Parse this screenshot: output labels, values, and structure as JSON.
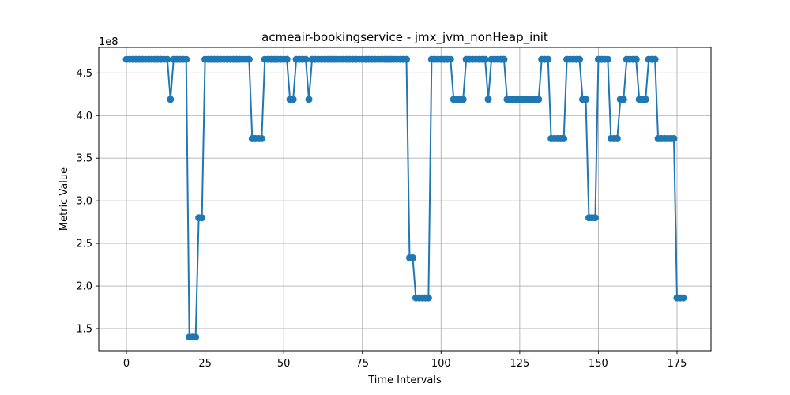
{
  "chart_data": {
    "type": "line",
    "title": "acmeair-bookingservice - jmx_jvm_nonHeap_init",
    "xlabel": "Time Intervals",
    "ylabel": "Metric Value",
    "offset_label": "1e8",
    "xlim": [
      -8.8,
      185.8
    ],
    "ylim": [
      124000000,
      480000000
    ],
    "x_ticks": [
      0,
      25,
      50,
      75,
      100,
      125,
      150,
      175
    ],
    "y_ticks": [
      150000000,
      200000000,
      250000000,
      300000000,
      350000000,
      400000000,
      450000000
    ],
    "y_tick_labels": [
      "1.5",
      "2.0",
      "2.5",
      "3.0",
      "3.5",
      "4.0",
      "4.5"
    ],
    "grid": true,
    "marker": "circle",
    "color": "#1f77b4",
    "series": [
      {
        "values": [
          466000000,
          466000000,
          466000000,
          466000000,
          466000000,
          466000000,
          466000000,
          466000000,
          466000000,
          466000000,
          466000000,
          466000000,
          466000000,
          466000000,
          419000000,
          466000000,
          466000000,
          466000000,
          466000000,
          466000000,
          140000000,
          140000000,
          140000000,
          280000000,
          280000000,
          466000000,
          466000000,
          466000000,
          466000000,
          466000000,
          466000000,
          466000000,
          466000000,
          466000000,
          466000000,
          466000000,
          466000000,
          466000000,
          466000000,
          466000000,
          373000000,
          373000000,
          373000000,
          373000000,
          466000000,
          466000000,
          466000000,
          466000000,
          466000000,
          466000000,
          466000000,
          466000000,
          419000000,
          419000000,
          466000000,
          466000000,
          466000000,
          466000000,
          419000000,
          466000000,
          466000000,
          466000000,
          466000000,
          466000000,
          466000000,
          466000000,
          466000000,
          466000000,
          466000000,
          466000000,
          466000000,
          466000000,
          466000000,
          466000000,
          466000000,
          466000000,
          466000000,
          466000000,
          466000000,
          466000000,
          466000000,
          466000000,
          466000000,
          466000000,
          466000000,
          466000000,
          466000000,
          466000000,
          466000000,
          466000000,
          233000000,
          233000000,
          186000000,
          186000000,
          186000000,
          186000000,
          186000000,
          466000000,
          466000000,
          466000000,
          466000000,
          466000000,
          466000000,
          466000000,
          419000000,
          419000000,
          419000000,
          419000000,
          466000000,
          466000000,
          466000000,
          466000000,
          466000000,
          466000000,
          466000000,
          419000000,
          466000000,
          466000000,
          466000000,
          466000000,
          466000000,
          419000000,
          419000000,
          419000000,
          419000000,
          419000000,
          419000000,
          419000000,
          419000000,
          419000000,
          419000000,
          419000000,
          466000000,
          466000000,
          466000000,
          373000000,
          373000000,
          373000000,
          373000000,
          373000000,
          466000000,
          466000000,
          466000000,
          466000000,
          466000000,
          419000000,
          419000000,
          280000000,
          280000000,
          280000000,
          466000000,
          466000000,
          466000000,
          466000000,
          373000000,
          373000000,
          373000000,
          419000000,
          419000000,
          466000000,
          466000000,
          466000000,
          466000000,
          419000000,
          419000000,
          419000000,
          466000000,
          466000000,
          466000000,
          373000000,
          373000000,
          373000000,
          373000000,
          373000000,
          373000000,
          186000000,
          186000000,
          186000000
        ]
      }
    ]
  }
}
